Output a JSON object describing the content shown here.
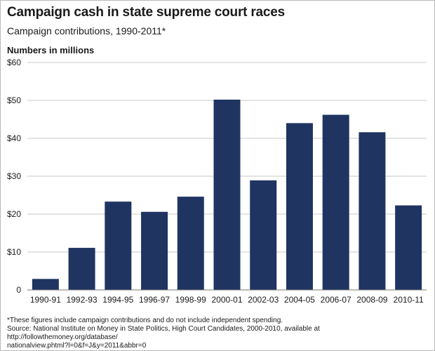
{
  "header": {
    "title": "Campaign cash in state supreme court races",
    "subtitle": "Campaign contributions, 1990-2011*",
    "unit_label": "Numbers in millions"
  },
  "colors": {
    "bar": "#1f3461",
    "grid": "#c9c9c9",
    "axis": "#777777",
    "text": "#1a1a1a"
  },
  "chart_data": {
    "type": "bar",
    "title": "Campaign cash in state supreme court races",
    "subtitle": "Campaign contributions, 1990-2011*",
    "xlabel": "",
    "ylabel": "Numbers in millions",
    "ylim": [
      0,
      60
    ],
    "yticks": [
      0,
      10,
      20,
      30,
      40,
      50,
      60
    ],
    "ytick_labels": [
      "0",
      "$10",
      "$20",
      "$30",
      "$40",
      "$50",
      "$60"
    ],
    "grid": true,
    "categories": [
      "1990-91",
      "1992-93",
      "1994-95",
      "1996-97",
      "1998-99",
      "2000-01",
      "2002-03",
      "2004-05",
      "2006-07",
      "2008-09",
      "2010-11"
    ],
    "values": [
      2.9,
      11.1,
      23.3,
      20.6,
      24.6,
      50.2,
      28.9,
      44.0,
      46.2,
      41.6,
      22.3
    ]
  },
  "footnotes": {
    "note": "*These figures include campaign contributions and do not include independent spending.",
    "source_line1": "Source: National Institute on Money in State Politics, High Court Candidates, 2000-2010, available at http://followthemoney.org/database/",
    "source_line2": "nationalview.phtml?l=0&f=J&y=2011&abbr=0"
  }
}
